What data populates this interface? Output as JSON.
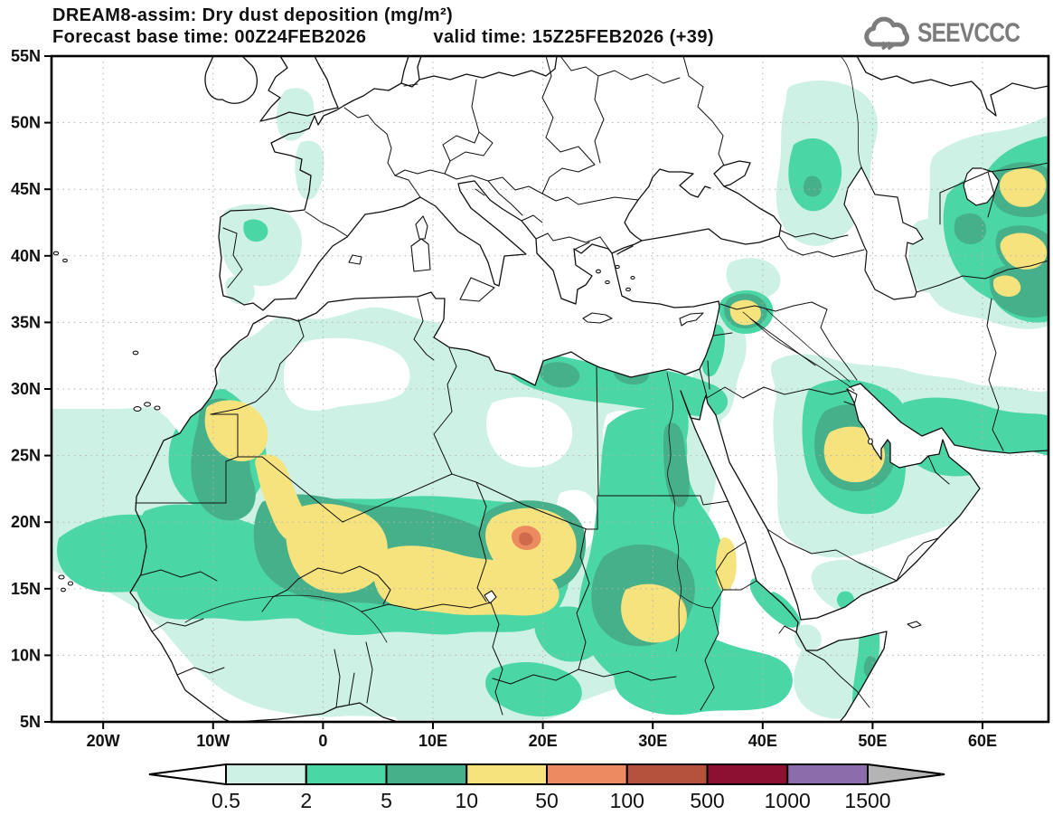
{
  "header": {
    "title_line1": "DREAM8-assim: Dry dust deposition (mg/m²)",
    "base_time_label": "Forecast base time: 00Z24FEB2026",
    "valid_time_label": "valid time: 15Z25FEB2026 (+39)"
  },
  "logo": {
    "text": "SEEVCCC",
    "color": "#7c7c7c"
  },
  "axes": {
    "lon_range": [
      -24.7,
      66.0
    ],
    "lat_range": [
      5,
      55
    ],
    "lon_ticks": [
      {
        "label": "20W",
        "deg": -20
      },
      {
        "label": "10W",
        "deg": -10
      },
      {
        "label": "0",
        "deg": 0
      },
      {
        "label": "10E",
        "deg": 10
      },
      {
        "label": "20E",
        "deg": 20
      },
      {
        "label": "30E",
        "deg": 30
      },
      {
        "label": "40E",
        "deg": 40
      },
      {
        "label": "50E",
        "deg": 50
      },
      {
        "label": "60E",
        "deg": 60
      }
    ],
    "lat_ticks": [
      {
        "label": "55N",
        "deg": 55
      },
      {
        "label": "50N",
        "deg": 50
      },
      {
        "label": "45N",
        "deg": 45
      },
      {
        "label": "40N",
        "deg": 40
      },
      {
        "label": "35N",
        "deg": 35
      },
      {
        "label": "30N",
        "deg": 30
      },
      {
        "label": "25N",
        "deg": 25
      },
      {
        "label": "20N",
        "deg": 20
      },
      {
        "label": "15N",
        "deg": 15
      },
      {
        "label": "10N",
        "deg": 10
      },
      {
        "label": "5N",
        "deg": 5
      }
    ]
  },
  "legend": {
    "values": [
      "0.5",
      "2",
      "5",
      "10",
      "50",
      "100",
      "500",
      "1000",
      "1500"
    ],
    "colors": [
      "#cdf1e4",
      "#4bd6a6",
      "#45b08a",
      "#f6e37d",
      "#ec8a60",
      "#b5523c",
      "#8d1033",
      "#8c6cab"
    ],
    "below_color": "#ffffff",
    "above_color": "#b4b4b4"
  },
  "map_meta": {
    "grid_color": "#b3b3b3",
    "frame_color": "#000000"
  }
}
